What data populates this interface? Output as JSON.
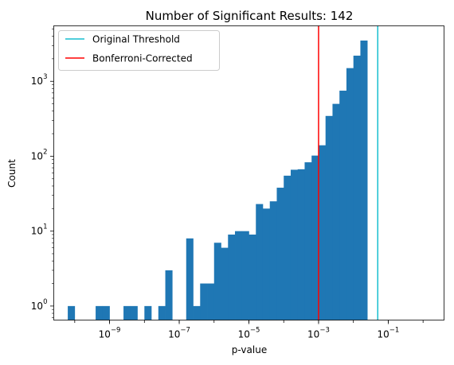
{
  "chart_data": {
    "type": "bar",
    "title": "Number of Significant Results: 142",
    "xlabel": "p-value",
    "ylabel": "Count",
    "x_scale": "log",
    "y_scale": "log",
    "xlim": [
      2.5e-11,
      4
    ],
    "ylim": [
      0.65,
      5500
    ],
    "bar_color": "#1f77b4",
    "x_ticks": [
      {
        "value": 1e-09,
        "base": "10",
        "exp": "−9"
      },
      {
        "value": 1e-07,
        "base": "10",
        "exp": "−7"
      },
      {
        "value": 1e-05,
        "base": "10",
        "exp": "−5"
      },
      {
        "value": 0.001,
        "base": "10",
        "exp": "−3"
      },
      {
        "value": 0.1,
        "base": "10",
        "exp": "−1"
      }
    ],
    "y_ticks": [
      {
        "value": 1,
        "base": "10",
        "exp": "0"
      },
      {
        "value": 10,
        "base": "10",
        "exp": "1"
      },
      {
        "value": 100,
        "base": "10",
        "exp": "2"
      },
      {
        "value": 1000,
        "base": "10",
        "exp": "3"
      }
    ],
    "bins": {
      "log10_start": -10.2,
      "log10_width": 0.2,
      "counts": [
        1,
        0,
        0,
        0,
        1,
        1,
        0,
        0,
        1,
        1,
        0,
        1,
        0,
        1,
        3,
        0,
        0,
        8,
        1,
        2,
        2,
        7,
        6,
        9,
        10,
        10,
        9,
        23,
        20,
        25,
        38,
        55,
        66,
        67,
        83,
        102,
        140,
        345,
        500,
        750,
        1500,
        2200,
        3500
      ]
    },
    "thresholds": [
      {
        "name": "Original Threshold",
        "value": 0.05,
        "color": "#17becf"
      },
      {
        "name": "Bonferroni-Corrected",
        "value": 0.001,
        "color": "#ff0000"
      }
    ],
    "legend_position": "top-left"
  }
}
